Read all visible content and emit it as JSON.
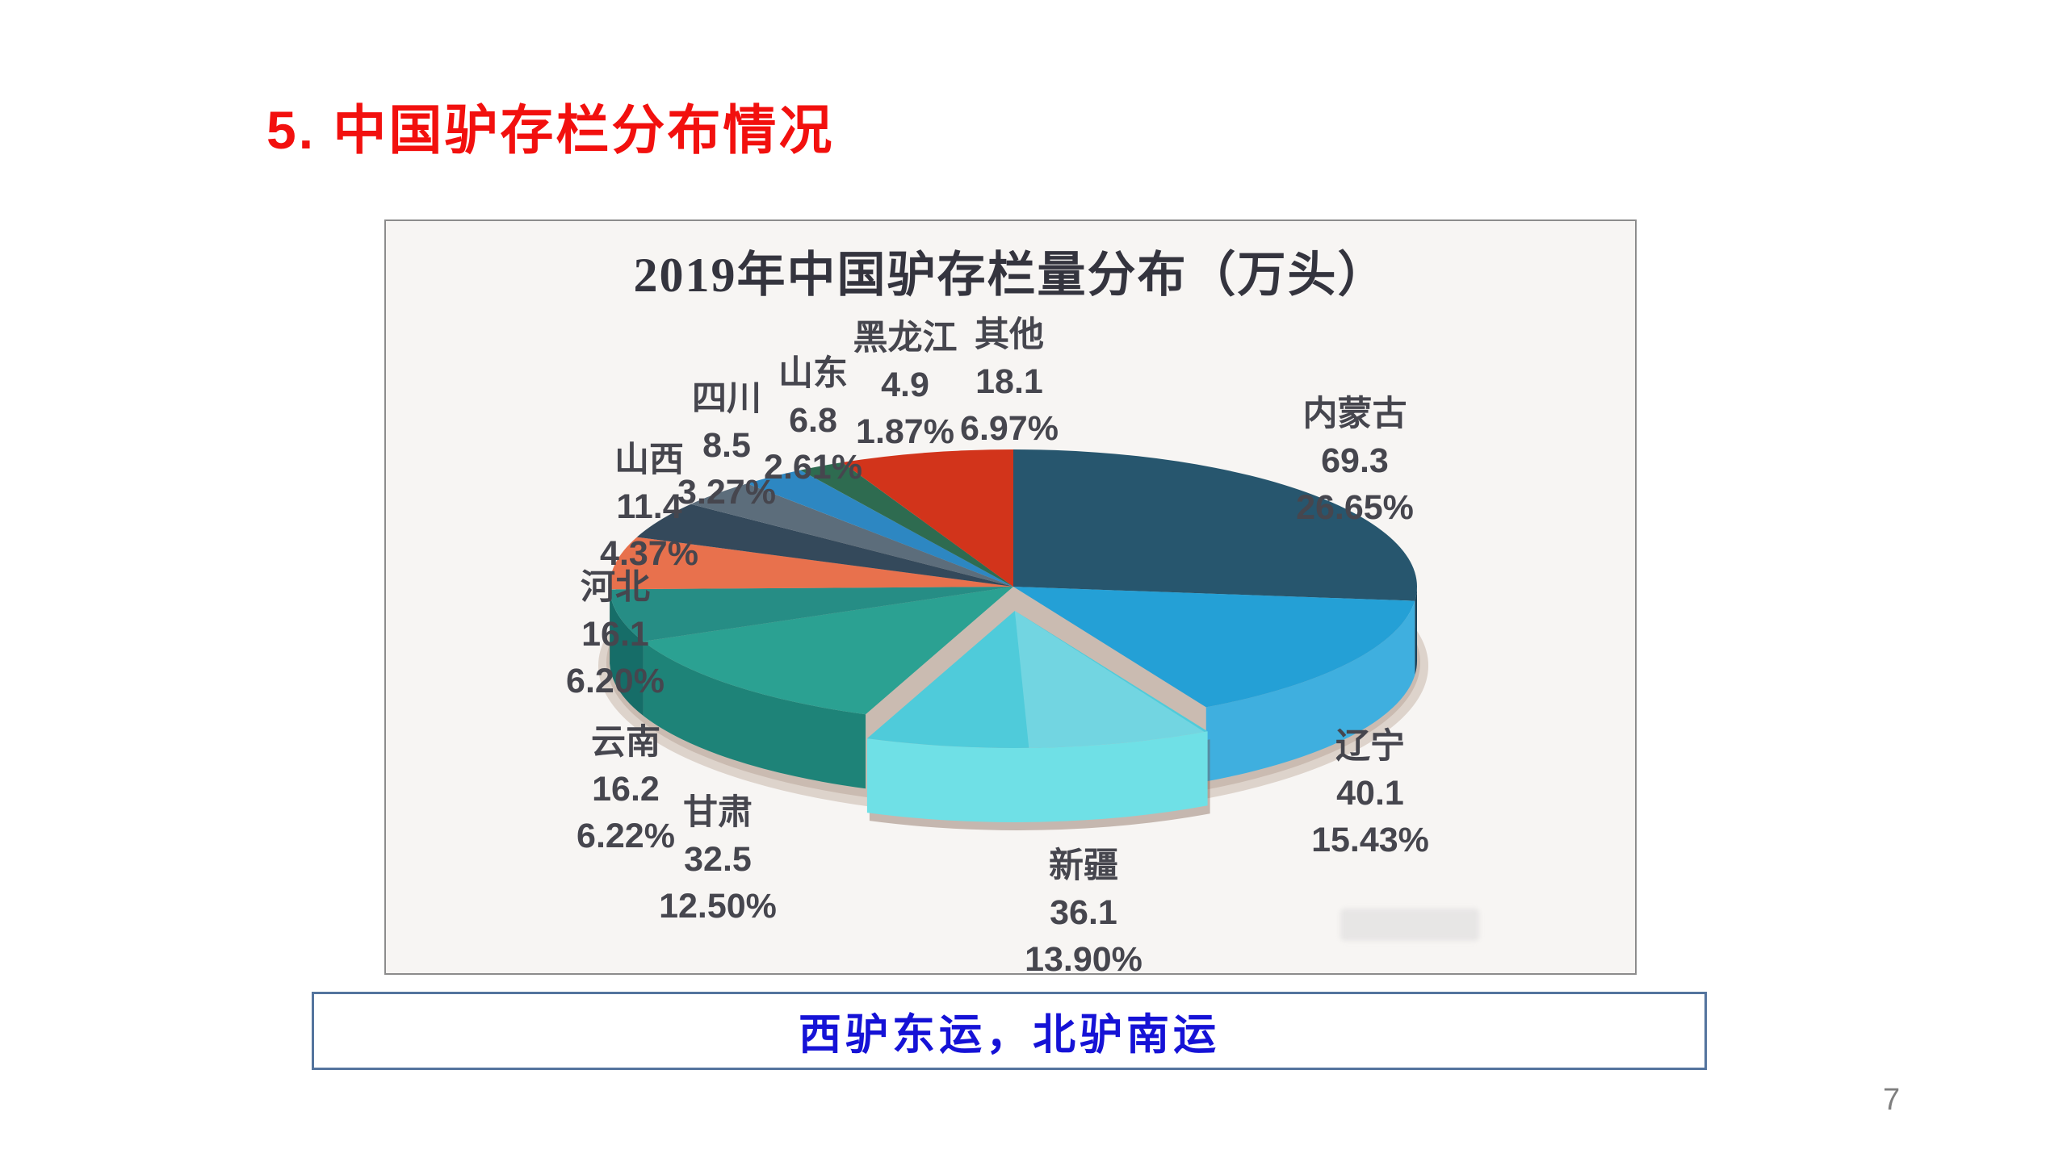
{
  "slide": {
    "title": "5. 中国驴存栏分布情况",
    "callout": "西驴东运，北驴南运",
    "page_number": "7",
    "colors": {
      "title_red": "#F2100E",
      "callout_blue": "#1512D6",
      "callout_border": "#54749E",
      "frame_border": "#8C8C8C",
      "label_gray": "#46464E"
    }
  },
  "chart_data": {
    "type": "pie",
    "style": "3d-exploded",
    "title": "2019年中国驴存栏量分布（万头）",
    "unit": "万头",
    "legend_position": "none",
    "slices": [
      {
        "name": "内蒙古",
        "value": 69.3,
        "pct": "26.65%",
        "color": "#27566E",
        "side": "#1B4258",
        "explode": false
      },
      {
        "name": "辽宁",
        "value": 40.1,
        "pct": "15.43%",
        "color": "#24A0D6",
        "side": "#3FAFDF",
        "explode": false
      },
      {
        "name": "新疆",
        "value": 36.1,
        "pct": "13.90%",
        "color": "#4FCBDA",
        "side": "#6FE0E6",
        "explode": true
      },
      {
        "name": "甘肃",
        "value": 32.5,
        "pct": "12.50%",
        "color": "#2BA192",
        "side": "#1E8378",
        "explode": false
      },
      {
        "name": "云南",
        "value": 16.2,
        "pct": "6.22%",
        "color": "#268D85",
        "side": "#166D68",
        "explode": false
      },
      {
        "name": "河北",
        "value": 16.1,
        "pct": "6.20%",
        "color": "#E8714D",
        "side": "#C2583A",
        "explode": false
      },
      {
        "name": "山西",
        "value": 11.4,
        "pct": "4.37%",
        "color": "#34495B",
        "side": "#243443",
        "explode": false
      },
      {
        "name": "四川",
        "value": 8.5,
        "pct": "3.27%",
        "color": "#5C6D7B",
        "side": "#47555F",
        "explode": false
      },
      {
        "name": "山东",
        "value": 6.8,
        "pct": "2.61%",
        "color": "#2D87C2",
        "side": "#1F6DA6",
        "explode": false
      },
      {
        "name": "黑龙江",
        "value": 4.9,
        "pct": "1.87%",
        "color": "#2E6B50",
        "side": "#1F533E",
        "explode": false
      },
      {
        "name": "其他",
        "value": 18.1,
        "pct": "6.97%",
        "color": "#D2341B",
        "side": "#A82513",
        "explode": false
      }
    ]
  }
}
